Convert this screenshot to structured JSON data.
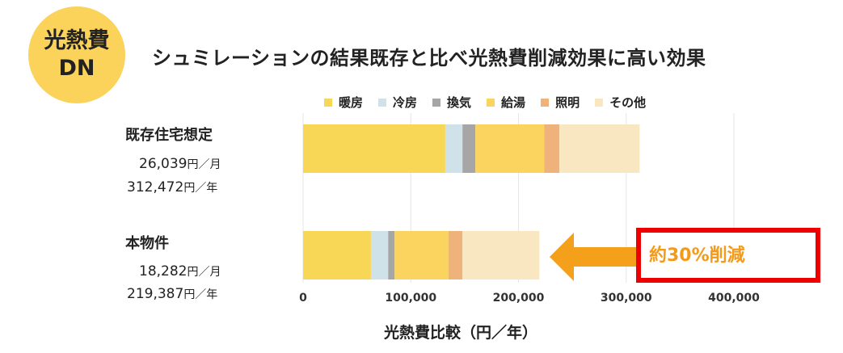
{
  "badge": {
    "line1": "光熱費",
    "line2": "DN"
  },
  "title": "シュミレーションの結果既存と比べ光熱費削減効果に高い効果",
  "rows": [
    {
      "label": "既存住宅想定",
      "monthly": "26,039",
      "monthly_unit": "円／月",
      "yearly": "312,472",
      "yearly_unit": "円／年"
    },
    {
      "label": "本物件",
      "monthly": "18,282",
      "monthly_unit": "円／月",
      "yearly": "219,387",
      "yearly_unit": "円／年"
    }
  ],
  "callout": "約30%削減",
  "colors": {
    "heating": "#f8d656",
    "cooling": "#cfe2ea",
    "ventilation": "#a6a6a6",
    "hotwater": "#fad45f",
    "lighting": "#efb27a",
    "other": "#f8e7c0",
    "arrow": "#f5a01a",
    "callout_border": "#ee0000",
    "badge": "#fbd35a"
  },
  "chart_data": {
    "type": "bar",
    "orientation": "horizontal",
    "stacked": true,
    "categories": [
      "既存住宅想定",
      "本物件"
    ],
    "series": [
      {
        "name": "暖房",
        "values": [
          132000,
          63000
        ]
      },
      {
        "name": "冷房",
        "values": [
          16000,
          16000
        ]
      },
      {
        "name": "換気",
        "values": [
          12000,
          6000
        ]
      },
      {
        "name": "給湯",
        "values": [
          64000,
          50000
        ]
      },
      {
        "name": "照明",
        "values": [
          14000,
          13000
        ]
      },
      {
        "name": "その他",
        "values": [
          74472,
          71387
        ]
      }
    ],
    "xticks": [
      "0",
      "100,000",
      "200,000",
      "300,000",
      "400,000"
    ],
    "xlim": [
      0,
      400000
    ],
    "xlabel": "光熱費比較（円／年）",
    "grid": true,
    "legend_position": "top"
  }
}
